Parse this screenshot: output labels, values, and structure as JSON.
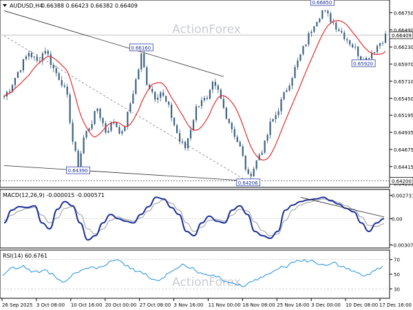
{
  "chart_data": [
    {
      "type": "candlestick",
      "symbol_label": "AUDUSD,H4",
      "ohlc_label": "0.66388 0.66423 0.66382 0.66409",
      "watermark": "ActionForex",
      "y_ticks": [
        "0.66750",
        "0.66490",
        "0.66230",
        "0.65970",
        "0.65710",
        "0.65450",
        "0.65195",
        "0.64935",
        "0.64675",
        "0.64415",
        "0.64155"
      ],
      "ylim": [
        0.6412,
        0.6688
      ],
      "x_labels": [
        "26 Sep 2025",
        "3 Oct 08:00",
        "10 Oct 16:00",
        "20 Oct 00:00",
        "27 Oct 08:00",
        "3 Nov 16:00",
        "11 Nov 00:00",
        "18 Nov 08:00",
        "25 Nov 16:00",
        "3 Dec 00:00",
        "10 Dec 08:00",
        "17 Dec 16:00"
      ],
      "current_price_label": "0.66409",
      "current_price": 0.66409,
      "support_line_label": "0.64200",
      "support_line": 0.642,
      "price_annotations": [
        {
          "text": "0.66850",
          "value": 0.6685,
          "bar": 116
        },
        {
          "text": "0.66160",
          "value": 0.6616,
          "bar": 50
        },
        {
          "text": "0.65920",
          "value": 0.6592,
          "bar": 131
        },
        {
          "text": "0.64390",
          "value": 0.6439,
          "bar": 27
        },
        {
          "text": "0.64206",
          "value": 0.64206,
          "bar": 89
        }
      ],
      "bar_count": 140,
      "waypoints": [
        [
          0,
          0.6548
        ],
        [
          2,
          0.656
        ],
        [
          5,
          0.6585
        ],
        [
          9,
          0.6615
        ],
        [
          12,
          0.66
        ],
        [
          15,
          0.662
        ],
        [
          18,
          0.659
        ],
        [
          21,
          0.657
        ],
        [
          23,
          0.6545
        ],
        [
          25,
          0.648
        ],
        [
          27,
          0.644
        ],
        [
          29,
          0.6485
        ],
        [
          32,
          0.651
        ],
        [
          34,
          0.653
        ],
        [
          37,
          0.6495
        ],
        [
          40,
          0.651
        ],
        [
          43,
          0.649
        ],
        [
          45,
          0.652
        ],
        [
          47,
          0.6555
        ],
        [
          49,
          0.659
        ],
        [
          50,
          0.661
        ],
        [
          52,
          0.657
        ],
        [
          55,
          0.6548
        ],
        [
          57,
          0.6555
        ],
        [
          60,
          0.653
        ],
        [
          62,
          0.6505
        ],
        [
          64,
          0.648
        ],
        [
          66,
          0.647
        ],
        [
          68,
          0.65
        ],
        [
          70,
          0.653
        ],
        [
          72,
          0.6545
        ],
        [
          74,
          0.654
        ],
        [
          76,
          0.6565
        ],
        [
          78,
          0.6555
        ],
        [
          80,
          0.653
        ],
        [
          82,
          0.651
        ],
        [
          84,
          0.649
        ],
        [
          86,
          0.647
        ],
        [
          88,
          0.644
        ],
        [
          89,
          0.6425
        ],
        [
          91,
          0.644
        ],
        [
          93,
          0.646
        ],
        [
          95,
          0.6475
        ],
        [
          97,
          0.6505
        ],
        [
          99,
          0.652
        ],
        [
          101,
          0.654
        ],
        [
          103,
          0.656
        ],
        [
          105,
          0.658
        ],
        [
          107,
          0.66
        ],
        [
          109,
          0.662
        ],
        [
          111,
          0.664
        ],
        [
          113,
          0.666
        ],
        [
          116,
          0.6678
        ],
        [
          118,
          0.667
        ],
        [
          120,
          0.666
        ],
        [
          122,
          0.665
        ],
        [
          124,
          0.664
        ],
        [
          126,
          0.663
        ],
        [
          128,
          0.662
        ],
        [
          131,
          0.66
        ],
        [
          134,
          0.6615
        ],
        [
          136,
          0.6625
        ],
        [
          139,
          0.664
        ]
      ],
      "trendlines": [
        {
          "name": "upper channel",
          "style": "solid",
          "points": [
            [
              0,
              0.6678
            ],
            [
              80,
              0.6578
            ]
          ]
        },
        {
          "name": "lower channel",
          "style": "solid",
          "points": [
            [
              0,
              0.6443
            ],
            [
              88,
              0.642
            ]
          ]
        },
        {
          "name": "middle channel",
          "style": "dashed",
          "points": [
            [
              0,
              0.664
            ],
            [
              88,
              0.6421
            ]
          ]
        }
      ],
      "moving_average": {
        "name": "MA",
        "color": "#e52b2b"
      },
      "candle_color": "#3a5f7f"
    },
    {
      "type": "line",
      "label": "MACD(12,26,9) -0.000015 -0.000571",
      "y_ticks": [
        "0.002731",
        "0.00",
        "-0.003077"
      ],
      "ylim": [
        -0.0032,
        0.0031
      ],
      "series": [
        {
          "color": "#1a2f9a",
          "values": [
            -0.0005,
            0.001,
            0.0014,
            0.0013,
            0.0015,
            -0.0005,
            -0.0012,
            0.0011,
            0.002,
            0.0015,
            -0.0005,
            -0.0025,
            -0.002,
            -0.0005,
            0.0005,
            0.0,
            -0.0003,
            -0.0005,
            0.0005,
            0.0014,
            0.0025,
            0.0023,
            0.0013,
            0.0005,
            -0.0015,
            -0.002,
            -0.0005,
            0.0003,
            -0.0003,
            -0.0005,
            0.001,
            0.0015,
            0.0005,
            -0.0015,
            -0.002,
            -0.0023,
            -0.0015,
            0.001,
            0.0016,
            0.002,
            0.0022,
            0.0023,
            0.0025,
            0.0021,
            0.0017,
            0.0012,
            0.0008,
            -0.0005,
            -0.0015,
            -0.0005,
            0.0
          ]
        },
        {
          "color": "#9a9a9a",
          "values": [
            -0.0002,
            0.0004,
            0.0009,
            0.0012,
            0.0013,
            0.0004,
            -0.0005,
            0.0001,
            0.0012,
            0.0014,
            0.0005,
            -0.0012,
            -0.0018,
            -0.0012,
            -0.0002,
            0.0002,
            -0.0001,
            -0.0003,
            0.0001,
            0.0009,
            0.0018,
            0.0022,
            0.0018,
            0.001,
            -0.0005,
            -0.0015,
            -0.001,
            -0.0002,
            -0.0001,
            -0.0003,
            0.0004,
            0.0011,
            0.0009,
            -0.0004,
            -0.0014,
            -0.002,
            -0.0018,
            -0.0002,
            0.001,
            0.0016,
            0.0019,
            0.0021,
            0.0023,
            0.0022,
            0.0019,
            0.0015,
            0.0011,
            0.0002,
            -0.0008,
            -0.0009,
            -0.0006
          ]
        }
      ],
      "trendline": {
        "points": [
          [
            39,
            0.0025
          ],
          [
            50,
            0.0002
          ]
        ]
      }
    },
    {
      "type": "line",
      "label": "RSI(14) 60.6761",
      "y_ticks": [
        "70",
        "50",
        "30"
      ],
      "ylim": [
        20,
        80
      ],
      "reference_levels": [
        70,
        30
      ],
      "series": [
        {
          "color": "#1e8fe0",
          "values": [
            48,
            55,
            60,
            58,
            62,
            57,
            54,
            52,
            56,
            50,
            47,
            42,
            40,
            46,
            52,
            55,
            58,
            60,
            57,
            60,
            63,
            68,
            70,
            66,
            62,
            58,
            54,
            50,
            46,
            43,
            41,
            45,
            52,
            56,
            60,
            62,
            58,
            55,
            52,
            50,
            48,
            46,
            43,
            40,
            38,
            35,
            33,
            37,
            40,
            42,
            46,
            50,
            54,
            57,
            60,
            63,
            66,
            68,
            70,
            68,
            66,
            63,
            62,
            64,
            66,
            60,
            57,
            54,
            52,
            48,
            50,
            54,
            58,
            61
          ]
        }
      ]
    }
  ]
}
